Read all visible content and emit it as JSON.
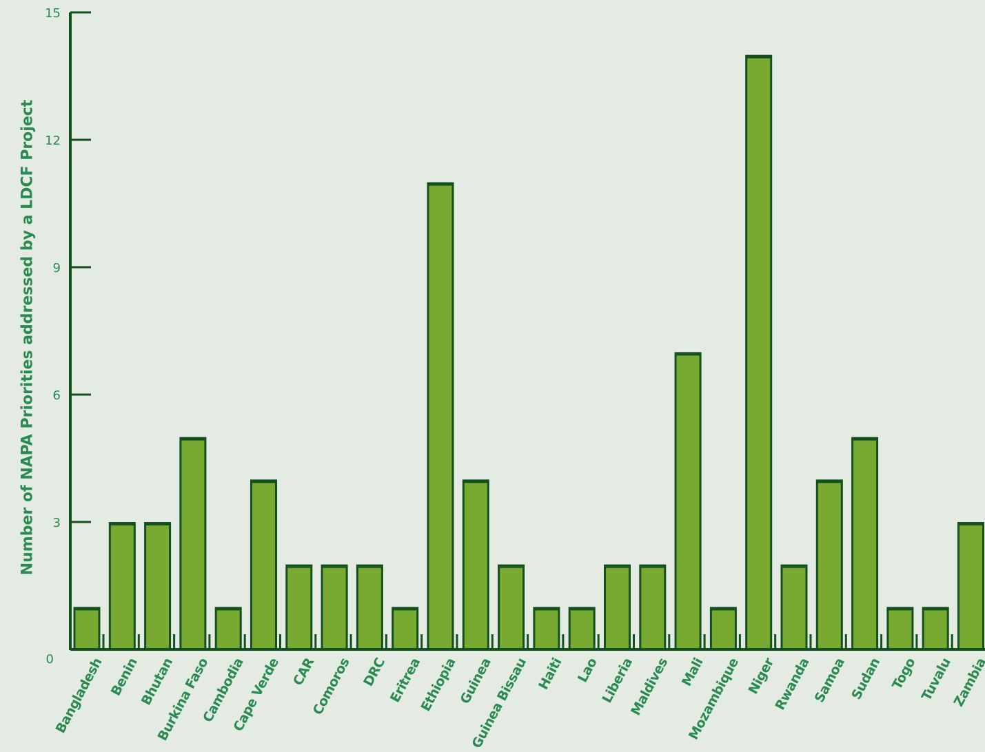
{
  "chart_data": {
    "type": "bar",
    "title": "",
    "xlabel": "",
    "ylabel": "Number of NAPA Priorities addressed by a LDCF Project",
    "ylim": [
      0,
      15
    ],
    "yticks": [
      0,
      3,
      6,
      9,
      12,
      15
    ],
    "grid": false,
    "colors": {
      "bar_fill": "#78aa32",
      "bar_edge": "#14501e",
      "axis": "#14501e",
      "text": "#2a8a50",
      "background": "#e3ebe2"
    },
    "categories": [
      "Bangladesh",
      "Benin",
      "Bhutan",
      "Burkina Faso",
      "Cambodia",
      "Cape Verde",
      "CAR",
      "Comoros",
      "DRC",
      "Eritrea",
      "Ethiopia",
      "Guinea",
      "Guinea Bissau",
      "Haiti",
      "Lao",
      "Liberia",
      "Maldives",
      "Mali",
      "Mozambique",
      "Niger",
      "Rwanda",
      "Samoa",
      "Sudan",
      "Togo",
      "Tuvalu",
      "Zambia"
    ],
    "values": [
      1,
      3,
      3,
      5,
      1,
      4,
      2,
      2,
      2,
      1,
      11,
      4,
      2,
      1,
      1,
      2,
      2,
      7,
      1,
      14,
      2,
      4,
      5,
      1,
      1,
      3
    ]
  }
}
